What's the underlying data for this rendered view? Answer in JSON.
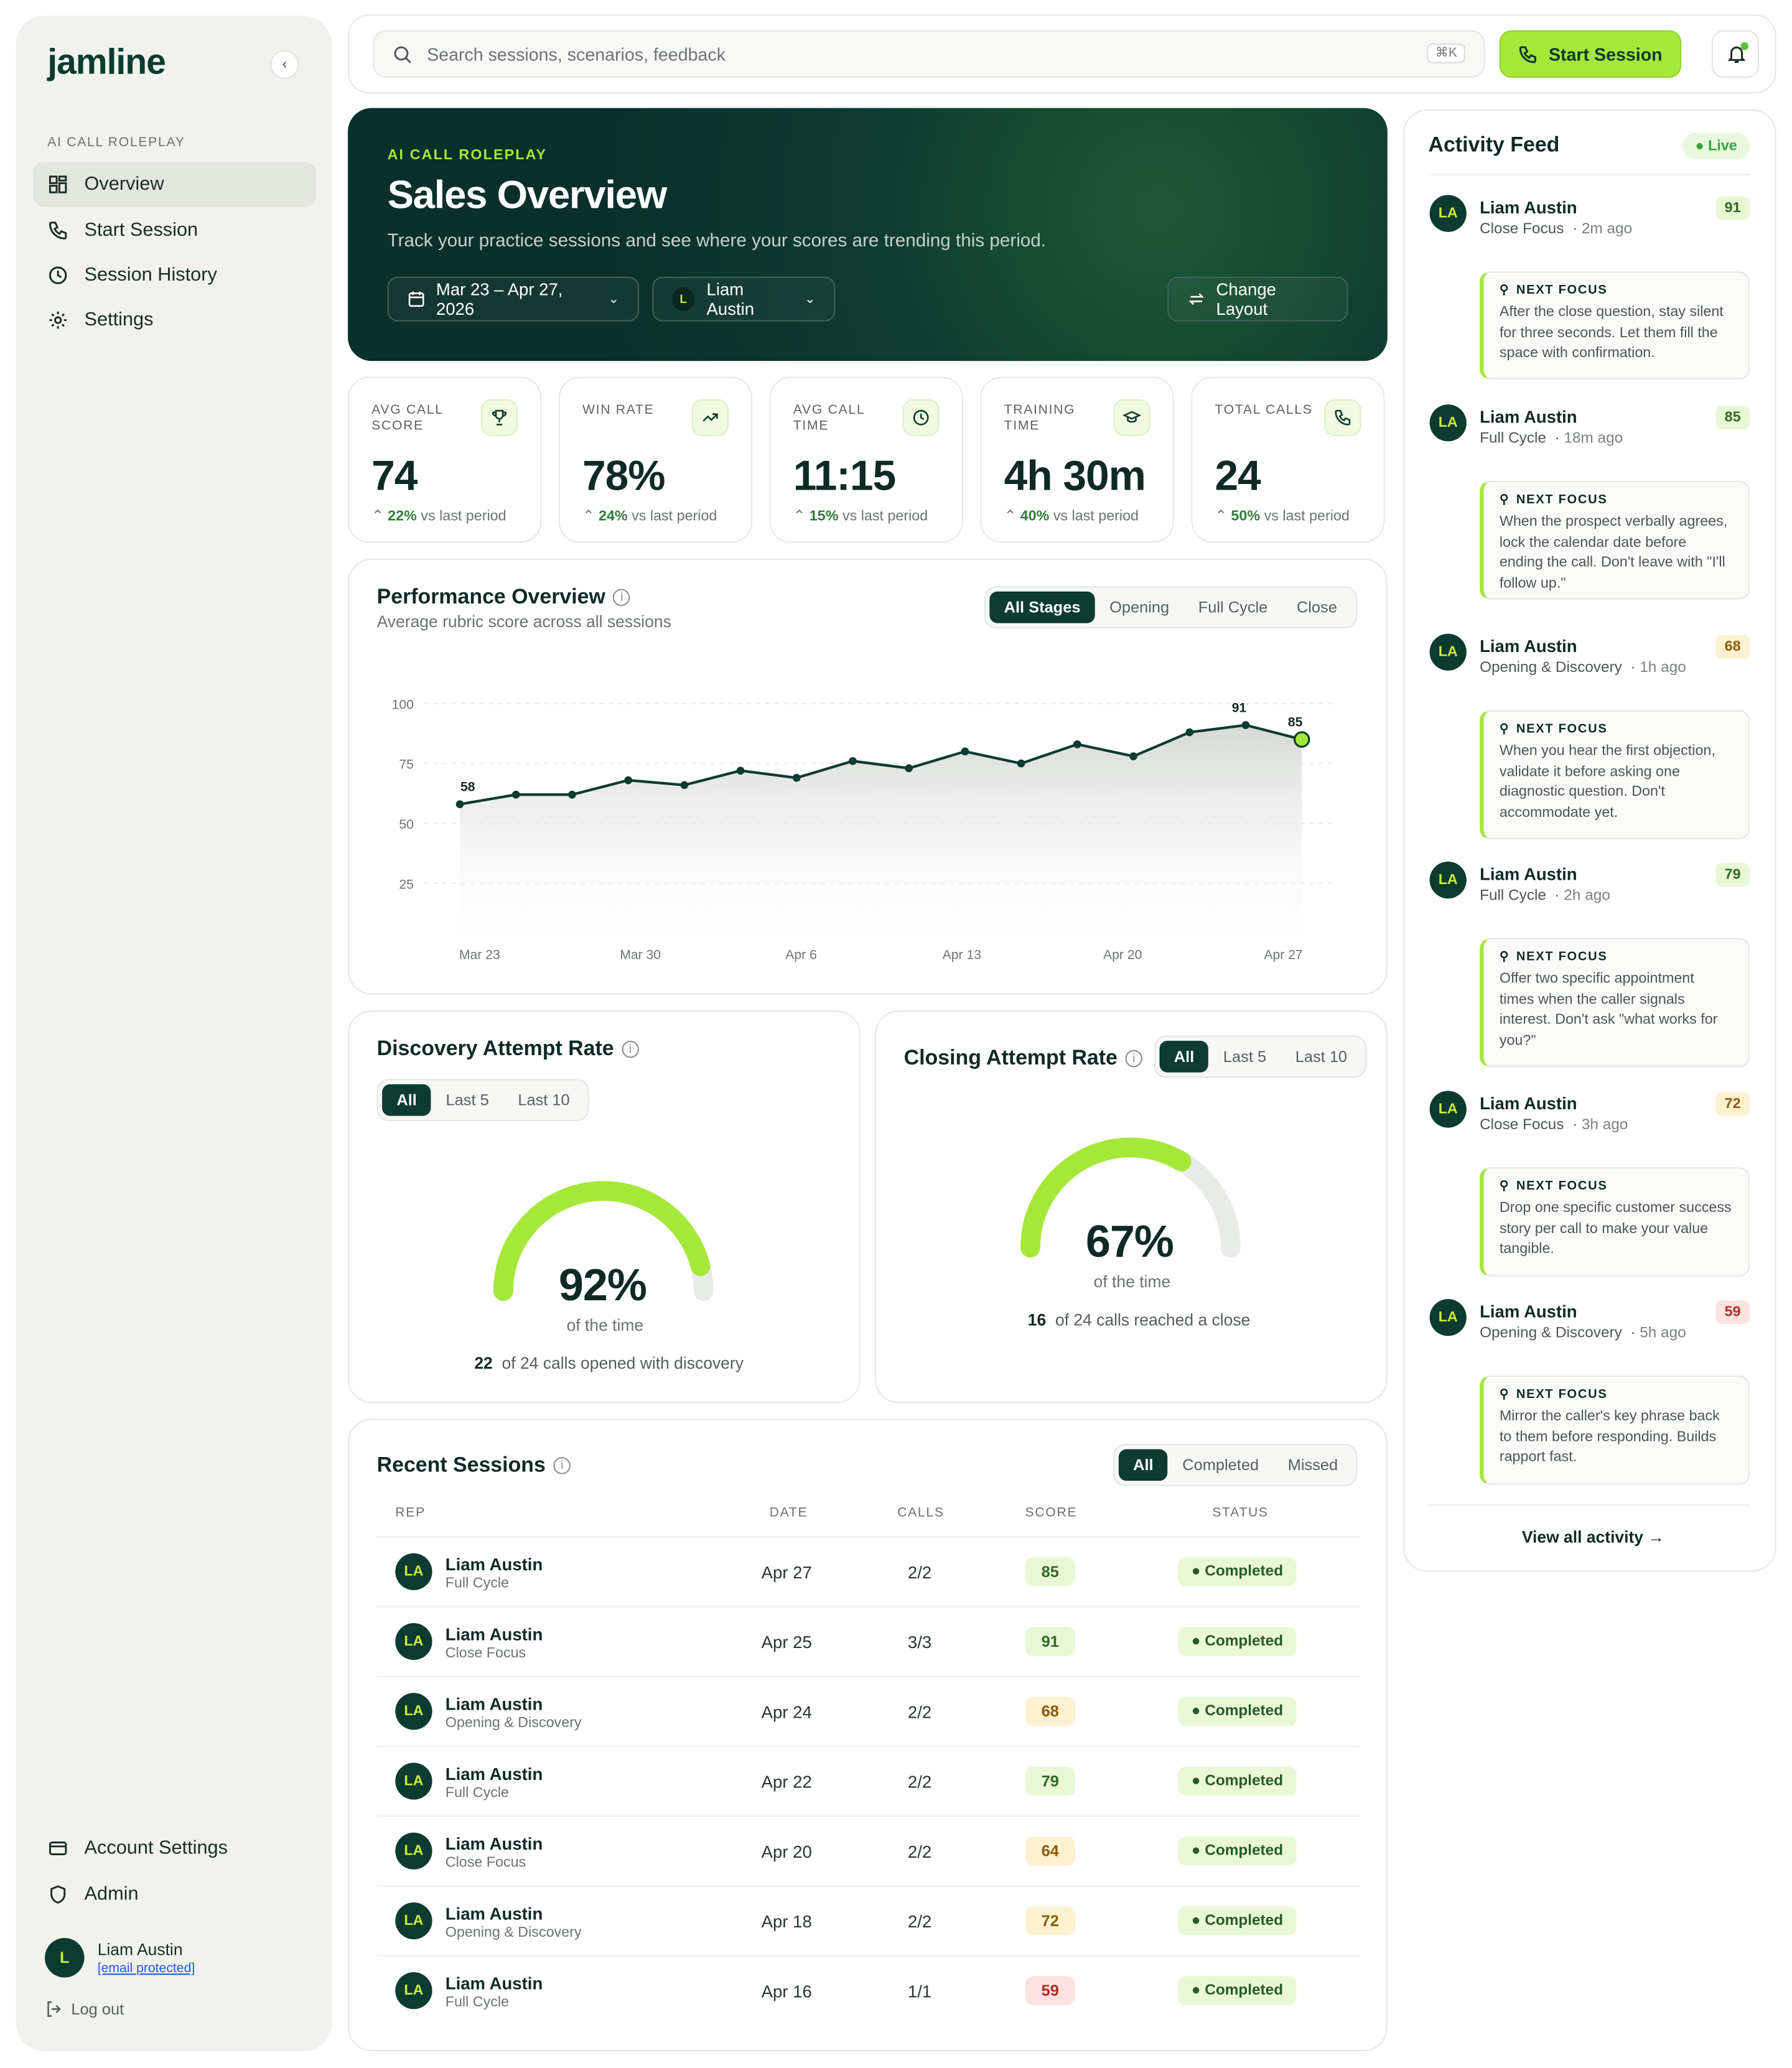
{
  "app": {
    "name": "jamline"
  },
  "sidebar": {
    "section_label": "AI CALL ROLEPLAY",
    "items": [
      {
        "label": "Overview",
        "icon": "grid-icon",
        "active": true
      },
      {
        "label": "Start Session",
        "icon": "phone-icon"
      },
      {
        "label": "Session History",
        "icon": "clock-icon"
      },
      {
        "label": "Settings",
        "icon": "gear-icon"
      }
    ],
    "bottom_items": [
      {
        "label": "Account Settings",
        "icon": "card-icon"
      },
      {
        "label": "Admin",
        "icon": "shield-icon"
      }
    ],
    "user": {
      "initial": "L",
      "name": "Liam Austin",
      "email": "[email protected]"
    },
    "logout_label": "Log out"
  },
  "topbar": {
    "search_placeholder": "Search sessions, scenarios, feedback",
    "shortcut": "⌘K",
    "start_label": "Start Session"
  },
  "hero": {
    "eyebrow": "AI CALL ROLEPLAY",
    "title": "Sales Overview",
    "subtitle": "Track your practice sessions and see where your scores are trending this period.",
    "date_range": "Mar 23 – Apr 27, 2026",
    "rep_initial": "L",
    "rep_name": "Liam Austin",
    "layout_label": "Change Layout"
  },
  "kpis": [
    {
      "label": "AVG CALL SCORE",
      "value": "74",
      "change": "22%",
      "suffix": "vs last period",
      "icon": "trophy-icon"
    },
    {
      "label": "WIN RATE",
      "value": "78%",
      "change": "24%",
      "suffix": "vs last period",
      "icon": "trending-up-icon"
    },
    {
      "label": "AVG CALL TIME",
      "value": "11:15",
      "change": "15%",
      "suffix": "vs last period",
      "icon": "clock-icon"
    },
    {
      "label": "TRAINING TIME",
      "value": "4h 30m",
      "change": "40%",
      "suffix": "vs last period",
      "icon": "graduation-cap-icon"
    },
    {
      "label": "TOTAL CALLS",
      "value": "24",
      "change": "50%",
      "suffix": "vs last period",
      "icon": "phone-icon"
    }
  ],
  "performance": {
    "title": "Performance Overview",
    "subtitle": "Average rubric score across all sessions",
    "tabs": [
      "All Stages",
      "Opening",
      "Full Cycle",
      "Close"
    ],
    "active_tab": 0
  },
  "chart_data": {
    "type": "area",
    "title": "Performance Overview",
    "y_ticks": [
      100,
      75,
      50,
      25
    ],
    "ylim": [
      0,
      100
    ],
    "x_tick_labels": [
      "Mar 23",
      "Mar 30",
      "Apr 6",
      "Apr 13",
      "Apr 20",
      "Apr 27"
    ],
    "series": [
      {
        "values": [
          58,
          62,
          62,
          68,
          66,
          72,
          69,
          76,
          73,
          80,
          75,
          83,
          78,
          88,
          91,
          85
        ]
      }
    ],
    "labeled_points": {
      "0": "58",
      "14": "91",
      "15": "85"
    },
    "colors": {
      "line": "#0c3b30",
      "fill_top": "#d6d9d6",
      "highlight": "#a6e83a"
    }
  },
  "discovery": {
    "title": "Discovery Attempt Rate",
    "tabs": [
      "All",
      "Last 5",
      "Last 10"
    ],
    "percent": 92,
    "value_label": "92%",
    "caption": "of the time",
    "count": "22",
    "note": "of 24 calls opened with discovery"
  },
  "closing": {
    "title": "Closing Attempt Rate",
    "tabs": [
      "All",
      "Last 5",
      "Last 10"
    ],
    "percent": 67,
    "value_label": "67%",
    "caption": "of the time",
    "count": "16",
    "note": "of 24 calls reached a close"
  },
  "sessions": {
    "title": "Recent Sessions",
    "tabs": [
      "All",
      "Completed",
      "Missed"
    ],
    "columns": [
      "REP",
      "DATE",
      "CALLS",
      "SCORE",
      "STATUS"
    ],
    "rows": [
      {
        "initials": "LA",
        "name": "Liam Austin",
        "type": "Full Cycle",
        "date": "Apr 27",
        "calls": "2/2",
        "score": "85",
        "tier": "high",
        "status": "Completed"
      },
      {
        "initials": "LA",
        "name": "Liam Austin",
        "type": "Close Focus",
        "date": "Apr 25",
        "calls": "3/3",
        "score": "91",
        "tier": "high",
        "status": "Completed"
      },
      {
        "initials": "LA",
        "name": "Liam Austin",
        "type": "Opening & Discovery",
        "date": "Apr 24",
        "calls": "2/2",
        "score": "68",
        "tier": "mid",
        "status": "Completed"
      },
      {
        "initials": "LA",
        "name": "Liam Austin",
        "type": "Full Cycle",
        "date": "Apr 22",
        "calls": "2/2",
        "score": "79",
        "tier": "high",
        "status": "Completed"
      },
      {
        "initials": "LA",
        "name": "Liam Austin",
        "type": "Close Focus",
        "date": "Apr 20",
        "calls": "2/2",
        "score": "64",
        "tier": "mid",
        "status": "Completed"
      },
      {
        "initials": "LA",
        "name": "Liam Austin",
        "type": "Opening & Discovery",
        "date": "Apr 18",
        "calls": "2/2",
        "score": "72",
        "tier": "mid",
        "status": "Completed"
      },
      {
        "initials": "LA",
        "name": "Liam Austin",
        "type": "Full Cycle",
        "date": "Apr 16",
        "calls": "1/1",
        "score": "59",
        "tier": "low",
        "status": "Completed"
      }
    ]
  },
  "activity": {
    "title": "Activity Feed",
    "live_label": "Live",
    "focus_heading": "NEXT FOCUS",
    "items": [
      {
        "initials": "LA",
        "name": "Liam Austin",
        "type": "Close Focus",
        "time": "2m ago",
        "score": "91",
        "tier": "high",
        "focus": "After the close question, stay silent for three seconds. Let them fill the space with confirmation."
      },
      {
        "initials": "LA",
        "name": "Liam Austin",
        "type": "Full Cycle",
        "time": "18m ago",
        "score": "85",
        "tier": "high",
        "focus": "When the prospect verbally agrees, lock the calendar date before ending the call. Don't leave with \"I'll follow up.\""
      },
      {
        "initials": "LA",
        "name": "Liam Austin",
        "type": "Opening & Discovery",
        "time": "1h ago",
        "score": "68",
        "tier": "mid",
        "focus": "When you hear the first objection, validate it before asking one diagnostic question. Don't accommodate yet."
      },
      {
        "initials": "LA",
        "name": "Liam Austin",
        "type": "Full Cycle",
        "time": "2h ago",
        "score": "79",
        "tier": "high",
        "focus": "Offer two specific appointment times when the caller signals interest. Don't ask \"what works for you?\""
      },
      {
        "initials": "LA",
        "name": "Liam Austin",
        "type": "Close Focus",
        "time": "3h ago",
        "score": "72",
        "tier": "mid",
        "focus": "Drop one specific customer success story per call to make your value tangible."
      },
      {
        "initials": "LA",
        "name": "Liam Austin",
        "type": "Opening & Discovery",
        "time": "5h ago",
        "score": "59",
        "tier": "low",
        "focus": "Mirror the caller's key phrase back to them before responding. Builds rapport fast."
      }
    ],
    "view_all_label": "View all activity →"
  },
  "colors": {
    "brand_dark": "#0c3b30",
    "accent_lime": "#a6e83a",
    "score_high_bg": "#eaf7d5",
    "score_mid_bg": "#fdf1d2",
    "score_low_bg": "#fde2e0"
  }
}
